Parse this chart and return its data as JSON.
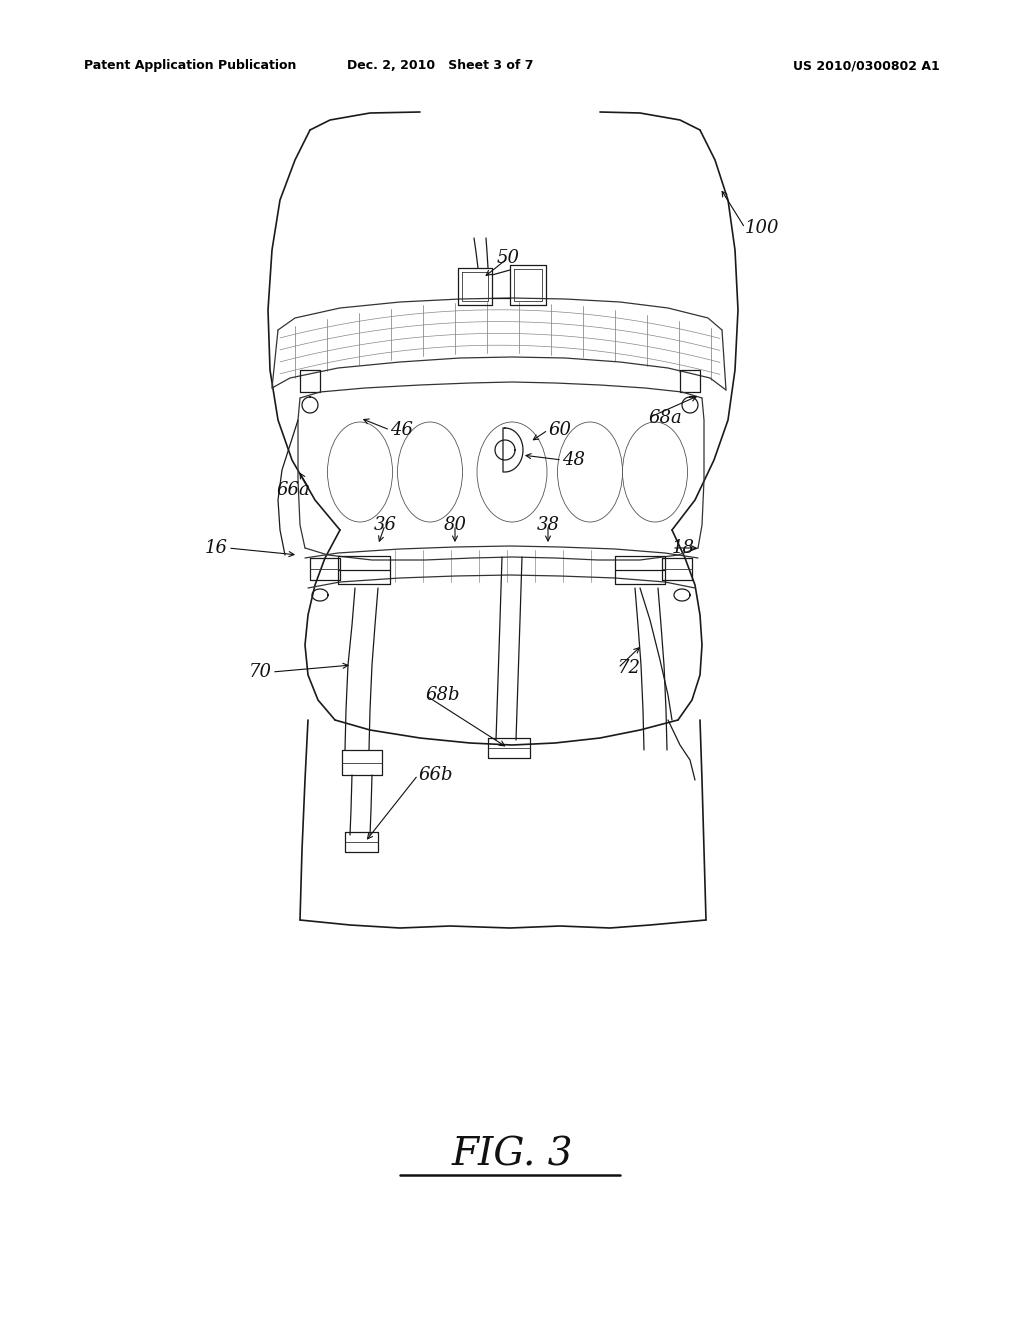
{
  "bg_color": "#ffffff",
  "header_left": "Patent Application Publication",
  "header_mid": "Dec. 2, 2010   Sheet 3 of 7",
  "header_right": "US 2010/0300802 A1",
  "fig_label": "FIG. 3"
}
